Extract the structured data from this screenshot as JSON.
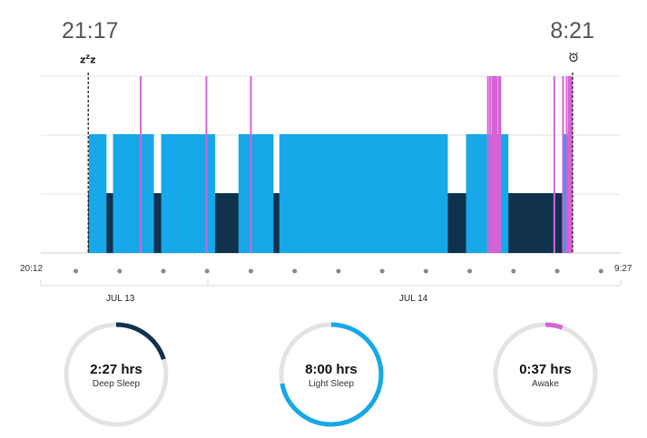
{
  "header": {
    "start_time": "21:17",
    "end_time": "8:21"
  },
  "icons": {
    "sleep_icon": "zzz-icon",
    "alarm_icon": "alarm-clock-icon"
  },
  "axis": {
    "start_label": "20:12",
    "end_label": "9:27",
    "dates": [
      "JUL 13",
      "JUL 14"
    ]
  },
  "colors": {
    "deep": "#10324d",
    "light": "#16a8e8",
    "awake": "#d663d6",
    "ring_track": "#e3e3e3"
  },
  "chart_data": {
    "type": "timeline",
    "x_range": [
      "20:12",
      "9:27"
    ],
    "sleep_start": "21:17",
    "sleep_end": "8:21",
    "stages": [
      "deep",
      "light",
      "awake"
    ],
    "light_segments": [
      [
        "21:18",
        "21:42"
      ],
      [
        "21:51",
        "22:47"
      ],
      [
        "22:57",
        "00:11"
      ],
      [
        "00:43",
        "01:31"
      ],
      [
        "01:39",
        "05:30"
      ],
      [
        "05:55",
        "06:53"
      ],
      [
        "08:09",
        "08:21"
      ]
    ],
    "deep_segments": [
      [
        "21:17",
        "08:21"
      ]
    ],
    "awake_events": [
      "22:29",
      "23:59",
      "01:00",
      "06:25",
      "06:28",
      "06:31",
      "06:33",
      "06:35",
      "06:37",
      "06:40",
      "06:42",
      "07:56",
      "08:08",
      "08:13",
      "08:16",
      "08:18",
      "08:20"
    ]
  },
  "stats": [
    {
      "value": "2:27 hrs",
      "label": "Deep Sleep",
      "fraction": 0.2
    },
    {
      "value": "8:00 hrs",
      "label": "Light Sleep",
      "fraction": 0.72
    },
    {
      "value": "0:37 hrs",
      "label": "Awake",
      "fraction": 0.055
    }
  ]
}
